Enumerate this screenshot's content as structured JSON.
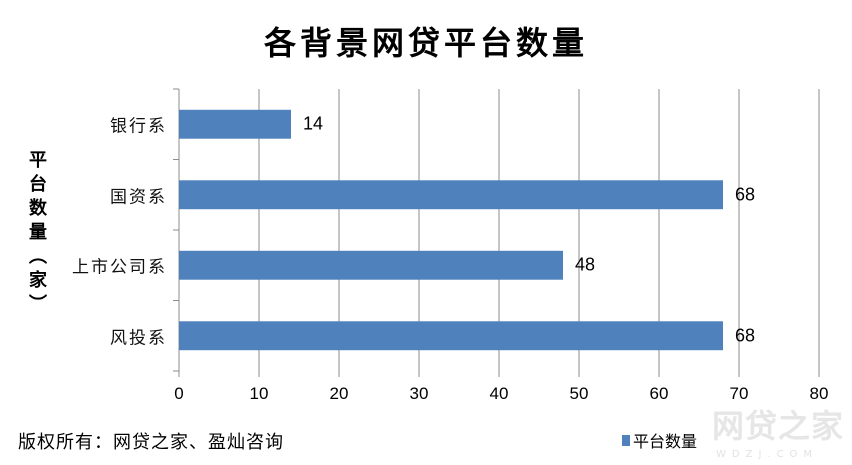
{
  "chart_data": {
    "type": "bar",
    "orientation": "horizontal",
    "title": "各背景网贷平台数量",
    "ylabel": "平台数量（家）",
    "xlabel": "",
    "categories": [
      "银行系",
      "国资系",
      "上市公司系",
      "风投系"
    ],
    "series": [
      {
        "name": "平台数量",
        "values": [
          14,
          68,
          48,
          68
        ],
        "color": "#4F81BD"
      }
    ],
    "xlim": [
      0,
      80
    ],
    "xticks": [
      "0",
      "10",
      "20",
      "30",
      "40",
      "50",
      "60",
      "70",
      "80"
    ],
    "grid": "vertical",
    "legend": "bottom-right",
    "data_labels": true
  },
  "footer": {
    "copyright": "版权所有：网贷之家、盈灿咨询"
  },
  "watermark": {
    "text": "网贷之家",
    "sub": "WDZJ.COM"
  }
}
